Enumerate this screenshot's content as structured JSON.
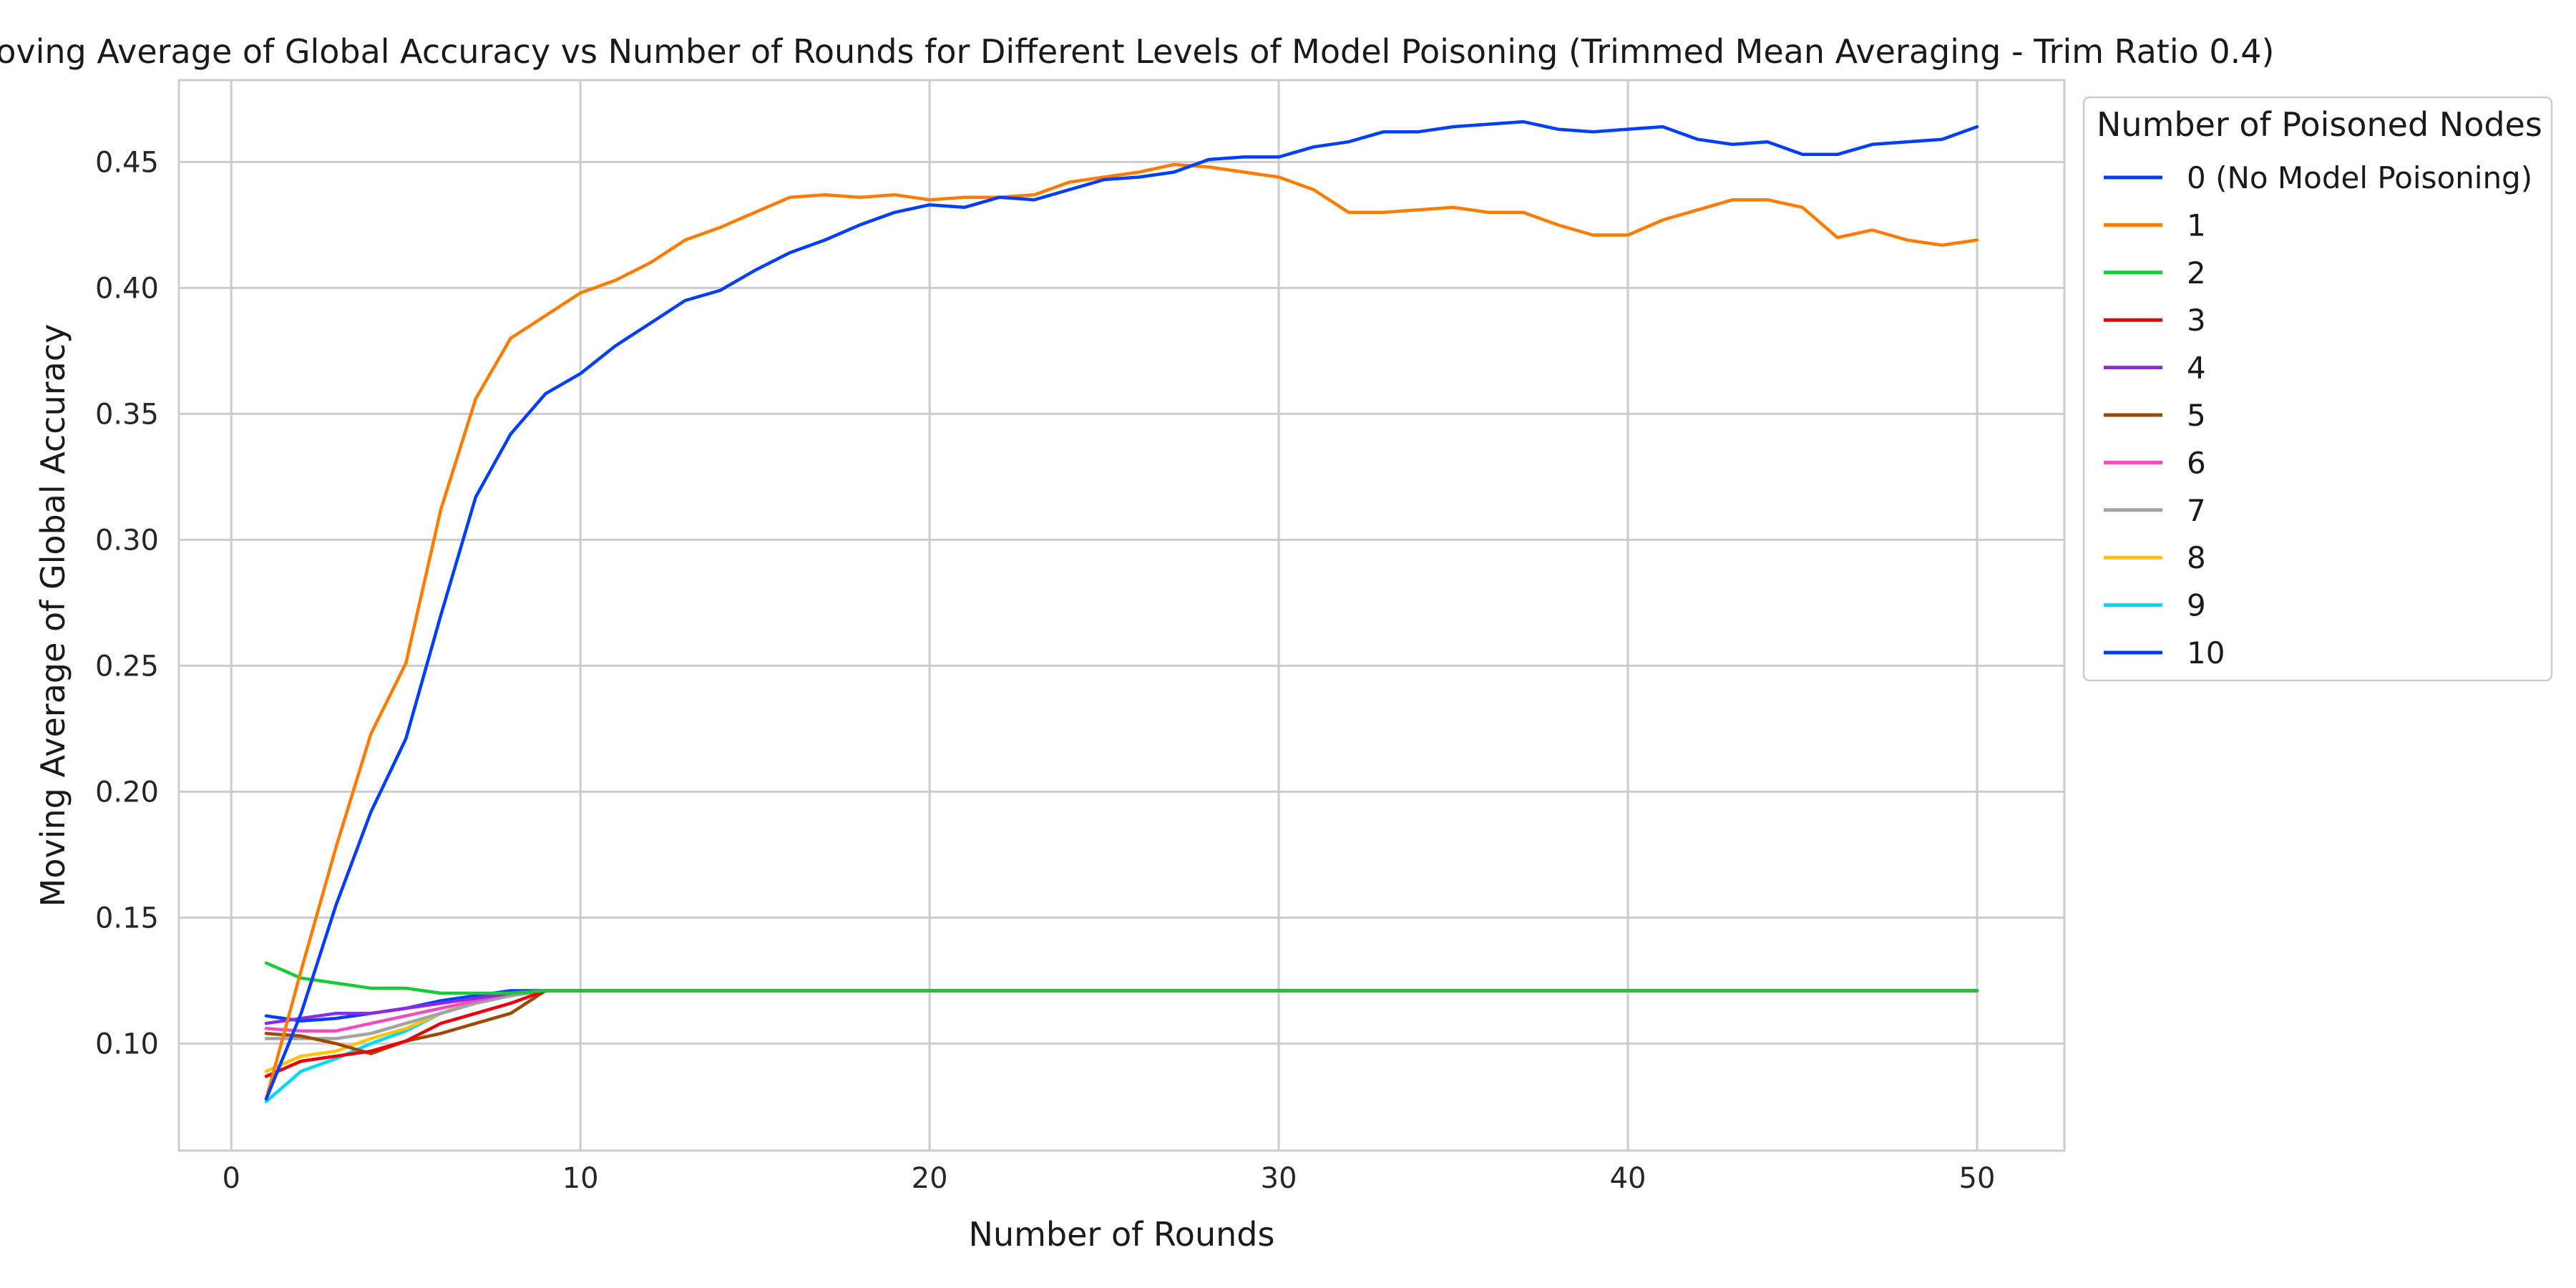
{
  "chart_data": {
    "type": "line",
    "title": "Moving Average of Global Accuracy vs Number of Rounds for Different Levels of Model Poisoning (Trimmed Mean Averaging - Trim Ratio 0.4)",
    "xlabel": "Number of Rounds",
    "ylabel": "Moving Average of Global Accuracy",
    "xlim": [
      -1.5,
      52.5
    ],
    "ylim": [
      0.0575,
      0.4825
    ],
    "x_ticks": [
      0,
      10,
      20,
      30,
      40,
      50
    ],
    "x_tick_labels": [
      "0",
      "10",
      "20",
      "30",
      "40",
      "50"
    ],
    "y_ticks": [
      0.1,
      0.15,
      0.2,
      0.25,
      0.3,
      0.35,
      0.4,
      0.45
    ],
    "y_tick_labels": [
      "0.10",
      "0.15",
      "0.20",
      "0.25",
      "0.30",
      "0.35",
      "0.40",
      "0.45"
    ],
    "grid": true,
    "legend_title": "Number of Poisoned Nodes",
    "legend_position": "outside-top-right",
    "x": [
      1,
      2,
      3,
      4,
      5,
      6,
      7,
      8,
      9,
      10,
      11,
      12,
      13,
      14,
      15,
      16,
      17,
      18,
      19,
      20,
      21,
      22,
      23,
      24,
      25,
      26,
      27,
      28,
      29,
      30,
      31,
      32,
      33,
      34,
      35,
      36,
      37,
      38,
      39,
      40,
      41,
      42,
      43,
      44,
      45,
      46,
      47,
      48,
      49,
      50
    ],
    "series": [
      {
        "name": "0 (No Model Poisoning)",
        "color": "#023eff",
        "values": [
          0.078,
          0.112,
          0.155,
          0.192,
          0.221,
          0.27,
          0.317,
          0.342,
          0.358,
          0.366,
          0.377,
          0.386,
          0.395,
          0.399,
          0.407,
          0.414,
          0.419,
          0.425,
          0.43,
          0.433,
          0.432,
          0.436,
          0.435,
          0.439,
          0.443,
          0.444,
          0.446,
          0.451,
          0.452,
          0.452,
          0.456,
          0.458,
          0.462,
          0.462,
          0.464,
          0.465,
          0.466,
          0.463,
          0.462,
          0.463,
          0.464,
          0.459,
          0.457,
          0.458,
          0.453,
          0.453,
          0.457,
          0.458,
          0.459,
          0.464
        ]
      },
      {
        "name": "1",
        "color": "#ff7c00",
        "values": [
          0.078,
          0.129,
          0.178,
          0.223,
          0.251,
          0.312,
          0.356,
          0.38,
          0.389,
          0.398,
          0.403,
          0.41,
          0.419,
          0.424,
          0.43,
          0.436,
          0.437,
          0.436,
          0.437,
          0.435,
          0.436,
          0.436,
          0.437,
          0.442,
          0.444,
          0.446,
          0.449,
          0.448,
          0.446,
          0.444,
          0.439,
          0.43,
          0.43,
          0.431,
          0.432,
          0.43,
          0.43,
          0.425,
          0.421,
          0.421,
          0.427,
          0.431,
          0.435,
          0.435,
          0.432,
          0.42,
          0.423,
          0.419,
          0.417,
          0.419
        ]
      },
      {
        "name": "2",
        "color": "#1ac938",
        "values": [
          0.132,
          0.126,
          0.124,
          0.122,
          0.122,
          0.12,
          0.12,
          0.12,
          0.121,
          0.121,
          0.121,
          0.121,
          0.121,
          0.121,
          0.121,
          0.121,
          0.121,
          0.121,
          0.121,
          0.121,
          0.121,
          0.121,
          0.121,
          0.121,
          0.121,
          0.121,
          0.121,
          0.121,
          0.121,
          0.121,
          0.121,
          0.121,
          0.121,
          0.121,
          0.121,
          0.121,
          0.121,
          0.121,
          0.121,
          0.121,
          0.121,
          0.121,
          0.121,
          0.121,
          0.121,
          0.121,
          0.121,
          0.121,
          0.121,
          0.121
        ]
      },
      {
        "name": "3",
        "color": "#e8000b",
        "values": [
          0.087,
          0.093,
          0.095,
          0.097,
          0.101,
          0.108,
          0.112,
          0.116,
          0.121,
          0.121,
          0.121,
          0.121,
          0.121,
          0.121,
          0.121,
          0.121,
          0.121,
          0.121,
          0.121,
          0.121,
          0.121,
          0.121,
          0.121,
          0.121,
          0.121,
          0.121,
          0.121,
          0.121,
          0.121,
          0.121,
          0.121,
          0.121,
          0.121,
          0.121,
          0.121,
          0.121,
          0.121,
          0.121,
          0.121,
          0.121,
          0.121,
          0.121,
          0.121,
          0.121,
          0.121,
          0.121,
          0.121,
          0.121,
          0.121,
          0.121
        ]
      },
      {
        "name": "4",
        "color": "#8b2be2",
        "values": [
          0.108,
          0.11,
          0.112,
          0.112,
          0.114,
          0.116,
          0.118,
          0.12,
          0.121,
          0.121,
          0.121,
          0.121,
          0.121,
          0.121,
          0.121,
          0.121,
          0.121,
          0.121,
          0.121,
          0.121,
          0.121,
          0.121,
          0.121,
          0.121,
          0.121,
          0.121,
          0.121,
          0.121,
          0.121,
          0.121,
          0.121,
          0.121,
          0.121,
          0.121,
          0.121,
          0.121,
          0.121,
          0.121,
          0.121,
          0.121,
          0.121,
          0.121,
          0.121,
          0.121,
          0.121,
          0.121,
          0.121,
          0.121,
          0.121,
          0.121
        ]
      },
      {
        "name": "5",
        "color": "#9f4800",
        "values": [
          0.104,
          0.103,
          0.1,
          0.096,
          0.101,
          0.104,
          0.108,
          0.112,
          0.121,
          0.121,
          0.121,
          0.121,
          0.121,
          0.121,
          0.121,
          0.121,
          0.121,
          0.121,
          0.121,
          0.121,
          0.121,
          0.121,
          0.121,
          0.121,
          0.121,
          0.121,
          0.121,
          0.121,
          0.121,
          0.121,
          0.121,
          0.121,
          0.121,
          0.121,
          0.121,
          0.121,
          0.121,
          0.121,
          0.121,
          0.121,
          0.121,
          0.121,
          0.121,
          0.121,
          0.121,
          0.121,
          0.121,
          0.121,
          0.121,
          0.121
        ]
      },
      {
        "name": "6",
        "color": "#f14cc1",
        "values": [
          0.106,
          0.105,
          0.105,
          0.108,
          0.111,
          0.114,
          0.117,
          0.12,
          0.121,
          0.121,
          0.121,
          0.121,
          0.121,
          0.121,
          0.121,
          0.121,
          0.121,
          0.121,
          0.121,
          0.121,
          0.121,
          0.121,
          0.121,
          0.121,
          0.121,
          0.121,
          0.121,
          0.121,
          0.121,
          0.121,
          0.121,
          0.121,
          0.121,
          0.121,
          0.121,
          0.121,
          0.121,
          0.121,
          0.121,
          0.121,
          0.121,
          0.121,
          0.121,
          0.121,
          0.121,
          0.121,
          0.121,
          0.121,
          0.121,
          0.121
        ]
      },
      {
        "name": "7",
        "color": "#a3a3a3",
        "values": [
          0.102,
          0.102,
          0.102,
          0.104,
          0.108,
          0.112,
          0.116,
          0.119,
          0.121,
          0.121,
          0.121,
          0.121,
          0.121,
          0.121,
          0.121,
          0.121,
          0.121,
          0.121,
          0.121,
          0.121,
          0.121,
          0.121,
          0.121,
          0.121,
          0.121,
          0.121,
          0.121,
          0.121,
          0.121,
          0.121,
          0.121,
          0.121,
          0.121,
          0.121,
          0.121,
          0.121,
          0.121,
          0.121,
          0.121,
          0.121,
          0.121,
          0.121,
          0.121,
          0.121,
          0.121,
          0.121,
          0.121,
          0.121,
          0.121,
          0.121
        ]
      },
      {
        "name": "8",
        "color": "#ffc400",
        "values": [
          0.089,
          0.095,
          0.097,
          0.102,
          0.106,
          0.112,
          0.117,
          0.12,
          0.121,
          0.121,
          0.121,
          0.121,
          0.121,
          0.121,
          0.121,
          0.121,
          0.121,
          0.121,
          0.121,
          0.121,
          0.121,
          0.121,
          0.121,
          0.121,
          0.121,
          0.121,
          0.121,
          0.121,
          0.121,
          0.121,
          0.121,
          0.121,
          0.121,
          0.121,
          0.121,
          0.121,
          0.121,
          0.121,
          0.121,
          0.121,
          0.121,
          0.121,
          0.121,
          0.121,
          0.121,
          0.121,
          0.121,
          0.121,
          0.121,
          0.121
        ]
      },
      {
        "name": "9",
        "color": "#00d7ff",
        "values": [
          0.077,
          0.089,
          0.094,
          0.1,
          0.105,
          0.112,
          0.116,
          0.119,
          0.121,
          0.121,
          0.121,
          0.121,
          0.121,
          0.121,
          0.121,
          0.121,
          0.121,
          0.121,
          0.121,
          0.121,
          0.121,
          0.121,
          0.121,
          0.121,
          0.121,
          0.121,
          0.121,
          0.121,
          0.121,
          0.121,
          0.121,
          0.121,
          0.121,
          0.121,
          0.121,
          0.121,
          0.121,
          0.121,
          0.121,
          0.121,
          0.121,
          0.121,
          0.121,
          0.121,
          0.121,
          0.121,
          0.121,
          0.121,
          0.121,
          0.121
        ]
      },
      {
        "name": "10",
        "color": "#023eff",
        "values": [
          0.111,
          0.109,
          0.11,
          0.112,
          0.114,
          0.117,
          0.119,
          0.121,
          0.121,
          0.121,
          0.121,
          0.121,
          0.121,
          0.121,
          0.121,
          0.121,
          0.121,
          0.121,
          0.121,
          0.121,
          0.121,
          0.121,
          0.121,
          0.121,
          0.121,
          0.121,
          0.121,
          0.121,
          0.121,
          0.121,
          0.121,
          0.121,
          0.121,
          0.121,
          0.121,
          0.121,
          0.121,
          0.121,
          0.121,
          0.121,
          0.121,
          0.121,
          0.121,
          0.121,
          0.121,
          0.121,
          0.121,
          0.121,
          0.121,
          0.121
        ]
      }
    ]
  }
}
